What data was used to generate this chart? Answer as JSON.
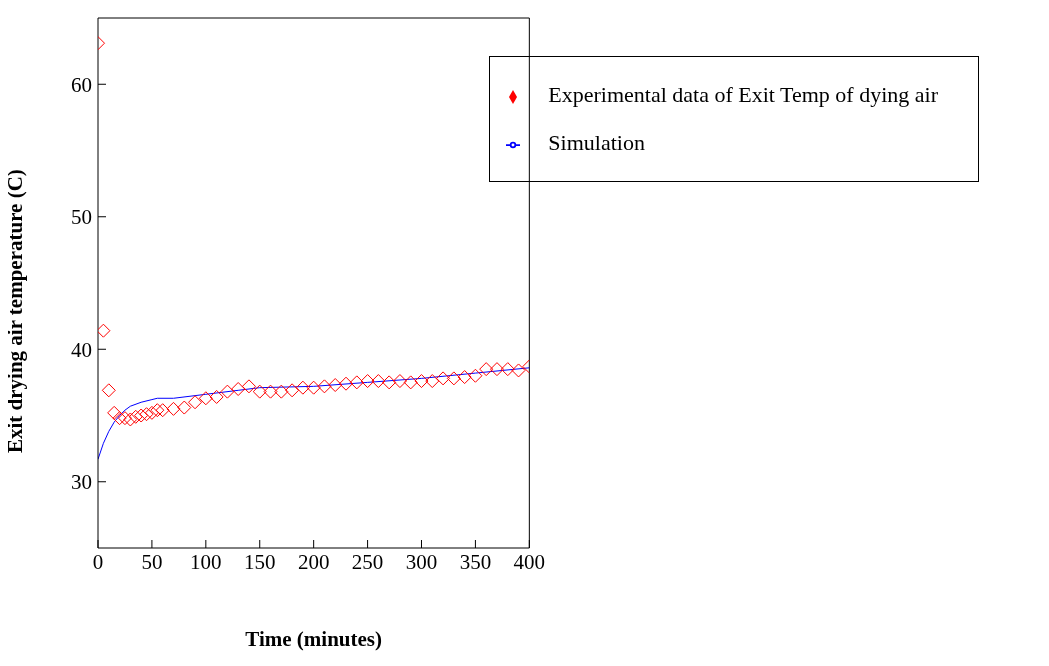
{
  "chart_data": {
    "type": "scatter",
    "xlabel": "Time (minutes)",
    "ylabel": "Exit drying air temperature (C)",
    "xlim": [
      0,
      400
    ],
    "ylim": [
      25,
      65
    ],
    "xticks": [
      0,
      50,
      100,
      150,
      200,
      250,
      300,
      350,
      400
    ],
    "yticks": [
      30,
      40,
      50,
      60
    ],
    "grid": false,
    "legend": "top right",
    "series": [
      {
        "name": "Experimental data of Exit Temp of dying air",
        "marker": "diamond",
        "color": "#ff0000",
        "x": [
          0,
          5,
          10,
          15,
          20,
          25,
          30,
          35,
          40,
          45,
          50,
          55,
          60,
          70,
          80,
          90,
          100,
          110,
          120,
          130,
          140,
          150,
          160,
          170,
          180,
          190,
          200,
          210,
          220,
          230,
          240,
          250,
          260,
          270,
          280,
          290,
          300,
          310,
          320,
          330,
          340,
          350,
          360,
          370,
          380,
          390,
          400
        ],
        "values": [
          63.1,
          41.4,
          36.9,
          35.2,
          34.8,
          34.8,
          34.7,
          34.9,
          35.0,
          35.1,
          35.2,
          35.4,
          35.4,
          35.5,
          35.6,
          36.0,
          36.3,
          36.4,
          36.8,
          37.0,
          37.2,
          36.8,
          36.8,
          36.8,
          36.9,
          37.1,
          37.1,
          37.2,
          37.3,
          37.4,
          37.5,
          37.6,
          37.6,
          37.5,
          37.6,
          37.5,
          37.6,
          37.6,
          37.8,
          37.8,
          37.9,
          38.0,
          38.5,
          38.5,
          38.5,
          38.4,
          38.7
        ]
      },
      {
        "name": "Simulation",
        "type": "line",
        "marker": "none",
        "color": "#0000ff",
        "x": [
          0,
          5,
          10,
          15,
          20,
          25,
          30,
          40,
          50,
          55,
          70,
          100,
          130,
          150,
          200,
          250,
          300,
          350,
          400
        ],
        "values": [
          31.7,
          32.9,
          33.8,
          34.5,
          35.0,
          35.4,
          35.7,
          36.0,
          36.2,
          36.3,
          36.3,
          36.6,
          36.9,
          37.1,
          37.2,
          37.5,
          37.8,
          38.2,
          38.6
        ]
      }
    ]
  }
}
